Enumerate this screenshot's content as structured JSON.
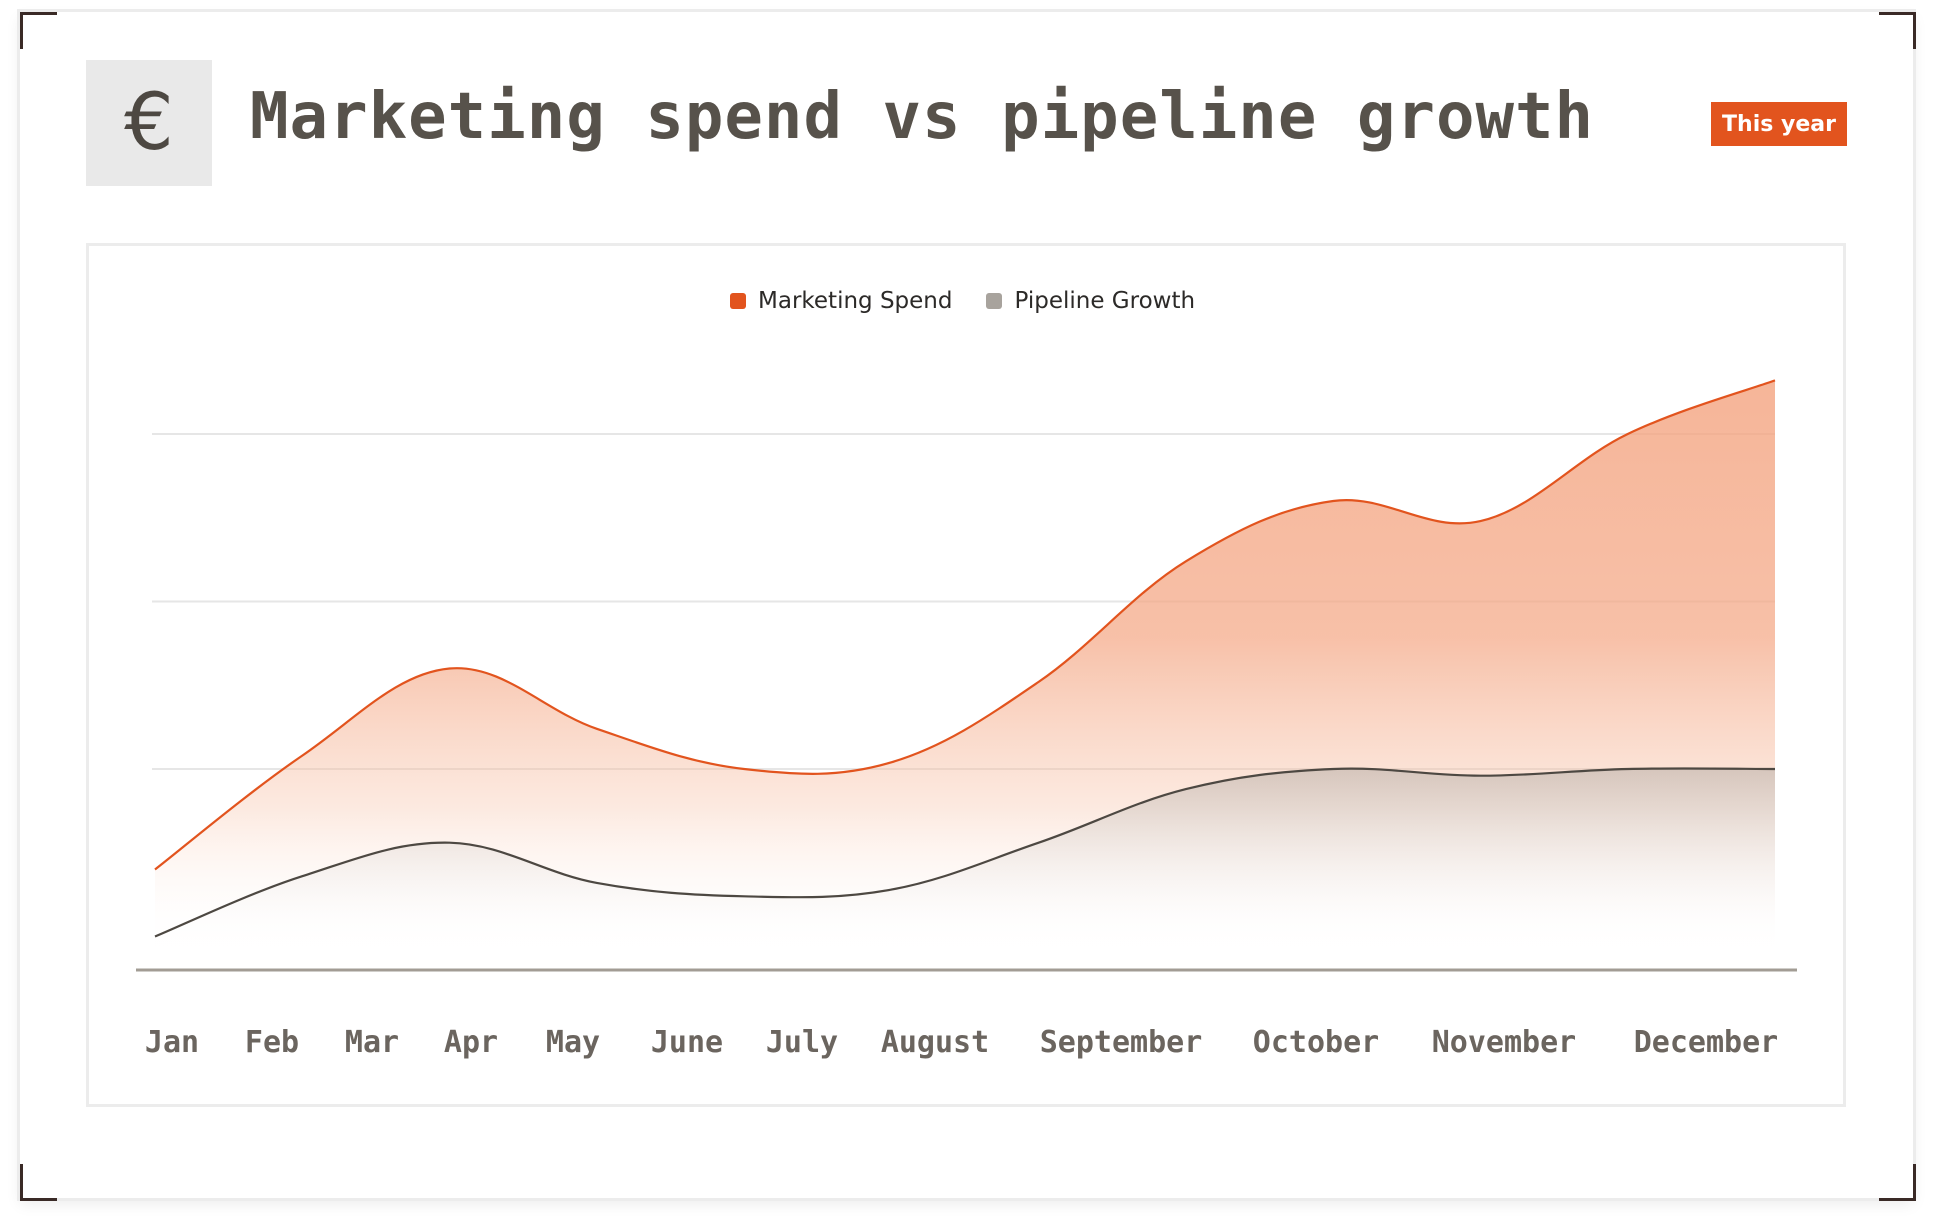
{
  "header": {
    "icon": "euro-icon",
    "icon_glyph": "€",
    "title": "Marketing spend vs pipeline growth",
    "period_badge": "This year"
  },
  "colors": {
    "accent": "#e2541e",
    "spend_fill": "#f4a582",
    "pipeline_line": "#4d4842",
    "pipeline_swatch": "#a8a39d",
    "grid": "#e6e6e6",
    "axis": "#a29c94"
  },
  "chart_data": {
    "type": "area",
    "title": "Marketing spend vs pipeline growth",
    "categories": [
      "Jan",
      "Feb",
      "Mar",
      "Apr",
      "May",
      "June",
      "July",
      "August",
      "September",
      "October",
      "November",
      "December"
    ],
    "series": [
      {
        "name": "Marketing Spend",
        "color": "#e2541e",
        "values": [
          15,
          32,
          45,
          36,
          30,
          31,
          43,
          61,
          70,
          67,
          80,
          88
        ]
      },
      {
        "name": "Pipeline Growth",
        "color": "#a8a39d",
        "values": [
          5,
          14,
          19,
          13,
          11,
          12,
          19,
          27,
          30,
          29,
          30,
          30
        ]
      }
    ],
    "xlabel": "",
    "ylabel": "",
    "ylim": [
      0,
      100
    ],
    "grid": true,
    "legend": "top-center"
  }
}
